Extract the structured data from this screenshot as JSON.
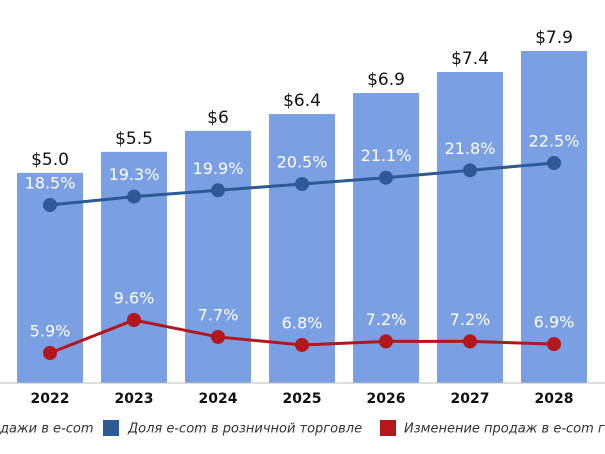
{
  "chart_data": {
    "type": "bar",
    "categories": [
      "2022",
      "2023",
      "2024",
      "2025",
      "2026",
      "2027",
      "2028"
    ],
    "series": [
      {
        "name": "дажи в e-com",
        "type": "bar",
        "color": "#7b9fe3",
        "values": [
          5.0,
          5.5,
          6,
          6.4,
          6.9,
          7.4,
          7.9
        ],
        "value_labels": [
          "$5.0",
          "$5.5",
          "$6",
          "$6.4",
          "$6.9",
          "$7.4",
          "$7.9"
        ]
      },
      {
        "name": "Доля e-com в розничной торговле",
        "type": "line",
        "color": "#2b5a94",
        "values": [
          18.5,
          19.3,
          19.9,
          20.5,
          21.1,
          21.8,
          22.5
        ],
        "value_labels": [
          "18.5%",
          "19.3%",
          "19.9%",
          "20.5%",
          "21.1%",
          "21.8%",
          "22.5%"
        ]
      },
      {
        "name": "Изменение продаж в e-com г",
        "type": "line",
        "color": "#b3161b",
        "values": [
          5.9,
          9.6,
          7.7,
          6.8,
          7.2,
          7.2,
          6.9
        ],
        "value_labels": [
          "5.9%",
          "9.6%",
          "7.7%",
          "6.8%",
          "7.2%",
          "7.2%",
          "6.9%"
        ]
      }
    ]
  }
}
